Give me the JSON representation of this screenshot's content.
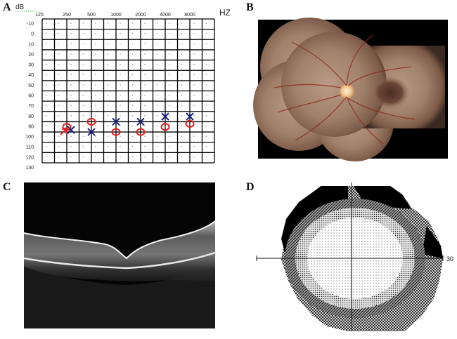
{
  "panels": {
    "audiogram_letter": "A",
    "fundus_letter": "B",
    "oct_letter": "C",
    "field_letter": "D"
  },
  "audiogram": {
    "y_unit": "dB",
    "x_unit": "HZ",
    "freq_labels": [
      "125",
      "250",
      "500",
      "1000",
      "2000",
      "4000",
      "8000"
    ],
    "db_labels": [
      "-10",
      "0",
      "10",
      "20",
      "30",
      "40",
      "50",
      "60",
      "70",
      "80",
      "90",
      "100",
      "110",
      "120",
      "130"
    ],
    "right_ear_circles_db": [
      null,
      95,
      90,
      100,
      100,
      95,
      92
    ],
    "left_ear_crosses_db": [
      null,
      98,
      100,
      90,
      90,
      85,
      85
    ],
    "marker_colors": {
      "circle": "#e02020",
      "cross": "#1a237e"
    }
  },
  "visual_field": {
    "axis_value": "30"
  }
}
